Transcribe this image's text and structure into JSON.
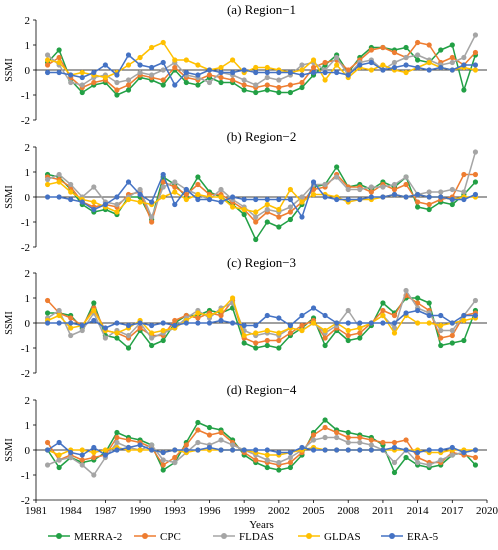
{
  "chart_data": {
    "type": "line",
    "xlabel": "Years",
    "ylabel": "SSMI",
    "xlim": [
      1981,
      2020
    ],
    "xticks": [
      1981,
      1984,
      1987,
      1990,
      1993,
      1996,
      1999,
      2002,
      2005,
      2008,
      2011,
      2014,
      2017,
      2020
    ],
    "ylim": [
      -2,
      2
    ],
    "yticks": [
      -2,
      -1,
      0,
      1,
      2
    ],
    "legend_position": "bottom",
    "grid": false,
    "x": [
      1982,
      1983,
      1984,
      1985,
      1986,
      1987,
      1988,
      1989,
      1990,
      1991,
      1992,
      1993,
      1994,
      1995,
      1996,
      1997,
      1998,
      1999,
      2000,
      2001,
      2002,
      2003,
      2004,
      2005,
      2006,
      2007,
      2008,
      2009,
      2010,
      2011,
      2012,
      2013,
      2014,
      2015,
      2016,
      2017,
      2018,
      2019
    ],
    "series_styles": [
      {
        "name": "MERRA-2",
        "color": "#22a045"
      },
      {
        "name": "CPC",
        "color": "#ee7d31"
      },
      {
        "name": "FLDAS",
        "color": "#a5a5a5"
      },
      {
        "name": "GLDAS",
        "color": "#ffc000"
      },
      {
        "name": "ERA-5",
        "color": "#4472c4"
      }
    ],
    "panels": [
      {
        "title": "(a) Region−1",
        "series": [
          {
            "name": "MERRA-2",
            "values": [
              0.3,
              0.8,
              -0.4,
              -0.9,
              -0.6,
              -0.5,
              -1.0,
              -0.8,
              -0.3,
              -0.4,
              -0.6,
              0.0,
              -0.5,
              -0.6,
              -0.3,
              -0.5,
              -0.5,
              -0.8,
              -0.9,
              -0.8,
              -0.9,
              -0.9,
              -0.7,
              -0.2,
              0.2,
              0.6,
              -0.1,
              0.5,
              0.9,
              0.9,
              0.8,
              0.9,
              0.4,
              0.3,
              0.8,
              1.0,
              -0.8,
              0.6
            ]
          },
          {
            "name": "CPC",
            "values": [
              0.2,
              0.5,
              -0.3,
              -0.7,
              -0.5,
              -0.4,
              -0.8,
              -0.6,
              -0.2,
              -0.3,
              -0.4,
              0.1,
              -0.3,
              -0.4,
              -0.2,
              -0.3,
              -0.4,
              -0.6,
              -0.7,
              -0.6,
              -0.7,
              -0.6,
              -0.5,
              0.1,
              0.3,
              0.4,
              0.0,
              0.4,
              0.8,
              0.9,
              0.7,
              0.5,
              1.1,
              1.0,
              0.3,
              0.5,
              0.2,
              0.7
            ]
          },
          {
            "name": "FLDAS",
            "values": [
              0.6,
              0.2,
              -0.5,
              -0.6,
              -0.3,
              -0.2,
              -0.5,
              -0.4,
              -0.1,
              -0.2,
              0.0,
              0.3,
              -0.2,
              -0.3,
              -0.5,
              -0.1,
              -0.2,
              -0.4,
              -0.6,
              -0.3,
              -0.4,
              -0.2,
              0.2,
              0.3,
              0.0,
              0.5,
              -0.2,
              0.3,
              0.4,
              0.0,
              0.3,
              0.5,
              0.6,
              0.4,
              0.2,
              0.3,
              0.5,
              1.4
            ]
          },
          {
            "name": "GLDAS",
            "values": [
              0.4,
              0.3,
              -0.2,
              -0.1,
              -0.2,
              -0.3,
              -0.1,
              0.2,
              0.5,
              0.9,
              1.1,
              0.4,
              0.4,
              0.2,
              0.0,
              0.1,
              0.4,
              -0.1,
              0.1,
              0.1,
              0.0,
              -0.1,
              0.0,
              0.4,
              -0.4,
              0.2,
              -0.3,
              0.1,
              0.0,
              0.2,
              0.0,
              -0.1,
              0.1,
              0.3,
              0.1,
              0.0,
              0.1,
              0.0
            ]
          },
          {
            "name": "ERA-5",
            "values": [
              -0.1,
              -0.1,
              -0.2,
              -0.3,
              -0.1,
              0.2,
              -0.2,
              0.6,
              0.2,
              0.1,
              0.3,
              -0.6,
              -0.1,
              -0.2,
              0.0,
              -0.1,
              -0.1,
              0.0,
              -0.1,
              -0.1,
              -0.1,
              -0.1,
              -0.2,
              -0.1,
              -0.1,
              -0.1,
              -0.2,
              0.2,
              0.3,
              0.0,
              0.1,
              0.2,
              0.1,
              0.0,
              0.1,
              0.0,
              0.2,
              0.2
            ]
          }
        ]
      },
      {
        "title": "(b) Region−2",
        "series": [
          {
            "name": "MERRA-2",
            "values": [
              0.9,
              0.8,
              0.3,
              -0.3,
              -0.6,
              -0.5,
              -0.7,
              0.0,
              0.0,
              -0.9,
              0.8,
              0.5,
              0.0,
              0.8,
              0.2,
              0.0,
              -0.3,
              -0.7,
              -1.7,
              -1.0,
              -1.2,
              -0.9,
              -0.3,
              0.4,
              0.5,
              1.2,
              0.4,
              0.5,
              0.3,
              0.6,
              0.4,
              0.8,
              -0.4,
              -0.5,
              -0.2,
              -0.3,
              0.1,
              0.6
            ]
          },
          {
            "name": "CPC",
            "values": [
              0.8,
              0.7,
              0.4,
              -0.2,
              -0.4,
              -0.3,
              -0.4,
              0.1,
              0.2,
              -1.0,
              0.6,
              0.4,
              0.1,
              0.5,
              0.1,
              0.1,
              -0.2,
              -0.5,
              -1.0,
              -0.6,
              -0.8,
              -0.6,
              -0.2,
              0.3,
              0.4,
              0.9,
              0.4,
              0.4,
              0.2,
              0.5,
              0.3,
              0.5,
              -0.2,
              -0.3,
              -0.1,
              0.0,
              0.9,
              0.9
            ]
          },
          {
            "name": "FLDAS",
            "values": [
              0.7,
              0.9,
              0.5,
              0.0,
              0.4,
              -0.2,
              -0.3,
              0.0,
              0.3,
              -0.8,
              0.4,
              0.6,
              0.3,
              0.1,
              -0.1,
              0.3,
              -0.1,
              -0.4,
              -0.8,
              -0.5,
              -0.6,
              -0.4,
              0.0,
              0.5,
              0.5,
              0.8,
              0.3,
              0.3,
              0.4,
              0.4,
              0.5,
              0.8,
              0.1,
              0.2,
              0.2,
              0.3,
              0.2,
              1.8
            ]
          },
          {
            "name": "GLDAS",
            "values": [
              0.5,
              0.6,
              0.2,
              -0.1,
              -0.2,
              -0.4,
              -0.6,
              -0.1,
              -0.2,
              -0.3,
              0.0,
              0.2,
              -0.1,
              0.1,
              0.0,
              0.0,
              -0.4,
              -0.5,
              -0.6,
              -0.3,
              -0.5,
              0.3,
              -0.2,
              0.1,
              0.1,
              0.0,
              -0.2,
              -0.1,
              -0.1,
              0.0,
              0.1,
              0.0,
              0.1,
              0.0,
              0.0,
              -0.1,
              0.0,
              0.0
            ]
          },
          {
            "name": "ERA-5",
            "values": [
              0.0,
              0.0,
              -0.1,
              -0.2,
              -0.5,
              -0.3,
              0.0,
              0.6,
              0.1,
              -0.2,
              0.9,
              -0.3,
              0.3,
              -0.1,
              -0.1,
              -0.2,
              0.0,
              -0.1,
              -0.1,
              -0.1,
              -0.1,
              -0.1,
              -0.8,
              0.6,
              0.0,
              -0.1,
              -0.1,
              -0.1,
              0.0,
              0.0,
              0.1,
              0.0,
              0.1,
              0.0,
              0.0,
              -0.1,
              -0.1,
              0.1
            ]
          }
        ]
      },
      {
        "title": "(c) Region−3",
        "series": [
          {
            "name": "MERRA-2",
            "values": [
              0.4,
              0.4,
              0.3,
              -0.2,
              0.8,
              -0.5,
              -0.6,
              -1.0,
              -0.3,
              -0.9,
              -0.7,
              0.0,
              0.3,
              0.3,
              0.5,
              0.4,
              0.6,
              -0.8,
              -1.0,
              -0.9,
              -1.0,
              -0.5,
              -0.2,
              0.2,
              -0.9,
              -0.3,
              -0.7,
              -0.6,
              -0.1,
              0.8,
              0.4,
              1.0,
              1.0,
              0.8,
              -0.9,
              -0.8,
              -0.7,
              0.5
            ]
          },
          {
            "name": "CPC",
            "values": [
              0.9,
              0.4,
              0.2,
              -0.1,
              0.6,
              -0.3,
              -0.4,
              -0.6,
              -0.2,
              -0.5,
              -0.5,
              0.1,
              0.3,
              0.2,
              0.4,
              0.3,
              0.9,
              -0.6,
              -0.8,
              -0.7,
              -0.7,
              -0.4,
              -0.1,
              0.1,
              -0.6,
              -0.2,
              -0.5,
              -0.4,
              0.0,
              0.5,
              0.3,
              1.1,
              0.8,
              0.5,
              -0.6,
              -0.5,
              0.3,
              0.4
            ]
          },
          {
            "name": "FLDAS",
            "values": [
              0.2,
              0.5,
              -0.5,
              -0.3,
              0.4,
              -0.6,
              -0.3,
              -0.5,
              0.0,
              -0.6,
              -0.4,
              -0.2,
              0.2,
              0.5,
              0.2,
              0.6,
              0.8,
              -0.3,
              -0.5,
              -0.4,
              -0.5,
              -0.2,
              -0.3,
              0.0,
              -0.4,
              -0.1,
              0.5,
              -0.2,
              0.0,
              0.3,
              -0.2,
              1.3,
              0.6,
              0.4,
              -0.3,
              -0.3,
              0.3,
              0.9
            ]
          },
          {
            "name": "GLDAS",
            "values": [
              0.1,
              0.3,
              -0.2,
              -0.1,
              0.5,
              -0.3,
              -0.4,
              -0.2,
              0.1,
              -0.4,
              -0.3,
              -0.2,
              0.1,
              0.4,
              0.3,
              0.5,
              1.0,
              -0.5,
              -0.4,
              -0.3,
              -0.4,
              -0.2,
              -0.3,
              0.0,
              -0.3,
              0.0,
              -0.3,
              -0.2,
              0.0,
              0.3,
              -0.4,
              0.3,
              0.0,
              0.0,
              -0.1,
              0.0,
              0.1,
              0.2
            ]
          },
          {
            "name": "ERA-5",
            "values": [
              0.0,
              0.0,
              0.0,
              -0.1,
              0.1,
              -0.2,
              0.0,
              -0.1,
              0.0,
              -0.1,
              0.0,
              -0.1,
              0.0,
              0.0,
              0.0,
              0.1,
              0.0,
              -0.1,
              -0.1,
              0.3,
              0.2,
              -0.1,
              0.3,
              0.6,
              0.3,
              0.0,
              0.0,
              0.0,
              0.0,
              0.0,
              0.0,
              0.4,
              0.5,
              0.3,
              0.3,
              0.0,
              0.3,
              0.3
            ]
          }
        ]
      },
      {
        "title": "(d) Region−4",
        "series": [
          {
            "name": "MERRA-2",
            "values": [
              0.0,
              -0.7,
              -0.3,
              -0.5,
              -0.4,
              -0.1,
              0.7,
              0.5,
              0.4,
              0.2,
              -0.8,
              -0.5,
              0.3,
              1.1,
              0.9,
              0.8,
              0.4,
              -0.2,
              -0.5,
              -0.7,
              -0.8,
              -0.7,
              -0.2,
              0.7,
              1.2,
              0.8,
              0.7,
              0.6,
              0.5,
              0.2,
              -0.9,
              -0.3,
              -0.6,
              -0.7,
              -0.6,
              -0.2,
              -0.1,
              -0.6
            ]
          },
          {
            "name": "CPC",
            "values": [
              0.3,
              -0.4,
              -0.2,
              -0.4,
              -0.3,
              -0.2,
              0.5,
              0.4,
              0.3,
              0.1,
              -0.6,
              -0.3,
              0.2,
              0.8,
              0.6,
              0.7,
              0.3,
              -0.1,
              -0.4,
              -0.5,
              -0.6,
              -0.5,
              -0.1,
              0.6,
              0.9,
              0.7,
              0.5,
              0.5,
              0.4,
              0.3,
              0.3,
              0.4,
              -0.3,
              -0.5,
              -0.5,
              -0.1,
              -0.2,
              -0.3
            ]
          },
          {
            "name": "FLDAS",
            "values": [
              -0.6,
              -0.4,
              -0.3,
              -0.6,
              -1.0,
              -0.3,
              0.3,
              0.1,
              0.0,
              0.2,
              -0.4,
              -0.5,
              -0.1,
              0.3,
              0.2,
              0.4,
              0.2,
              0.0,
              -0.2,
              -0.4,
              -0.5,
              -0.3,
              0.0,
              0.4,
              0.5,
              0.5,
              0.3,
              0.3,
              0.2,
              0.0,
              -0.5,
              0.0,
              -0.5,
              -0.6,
              -0.4,
              -0.2,
              -0.1,
              0.0
            ]
          },
          {
            "name": "GLDAS",
            "values": [
              0.0,
              -0.2,
              0.0,
              0.0,
              -0.1,
              0.0,
              0.1,
              0.0,
              0.0,
              0.0,
              -0.1,
              0.0,
              -0.1,
              0.0,
              0.0,
              0.0,
              0.0,
              0.0,
              -0.1,
              -0.2,
              -0.2,
              -0.1,
              0.0,
              0.1,
              0.0,
              0.0,
              0.0,
              0.0,
              0.0,
              0.0,
              0.0,
              0.0,
              0.0,
              -0.1,
              -0.1,
              0.0,
              0.0,
              0.0
            ]
          },
          {
            "name": "ERA-5",
            "values": [
              0.0,
              0.3,
              -0.1,
              -0.2,
              0.1,
              -0.2,
              0.0,
              0.1,
              0.2,
              0.0,
              -0.1,
              0.0,
              0.0,
              0.0,
              0.1,
              0.0,
              0.0,
              0.0,
              0.0,
              0.0,
              -0.1,
              -0.1,
              0.1,
              0.0,
              0.0,
              0.0,
              0.0,
              0.0,
              0.0,
              0.0,
              0.1,
              0.0,
              -0.1,
              0.0,
              0.0,
              0.1,
              -0.1,
              0.0
            ]
          }
        ]
      }
    ]
  }
}
